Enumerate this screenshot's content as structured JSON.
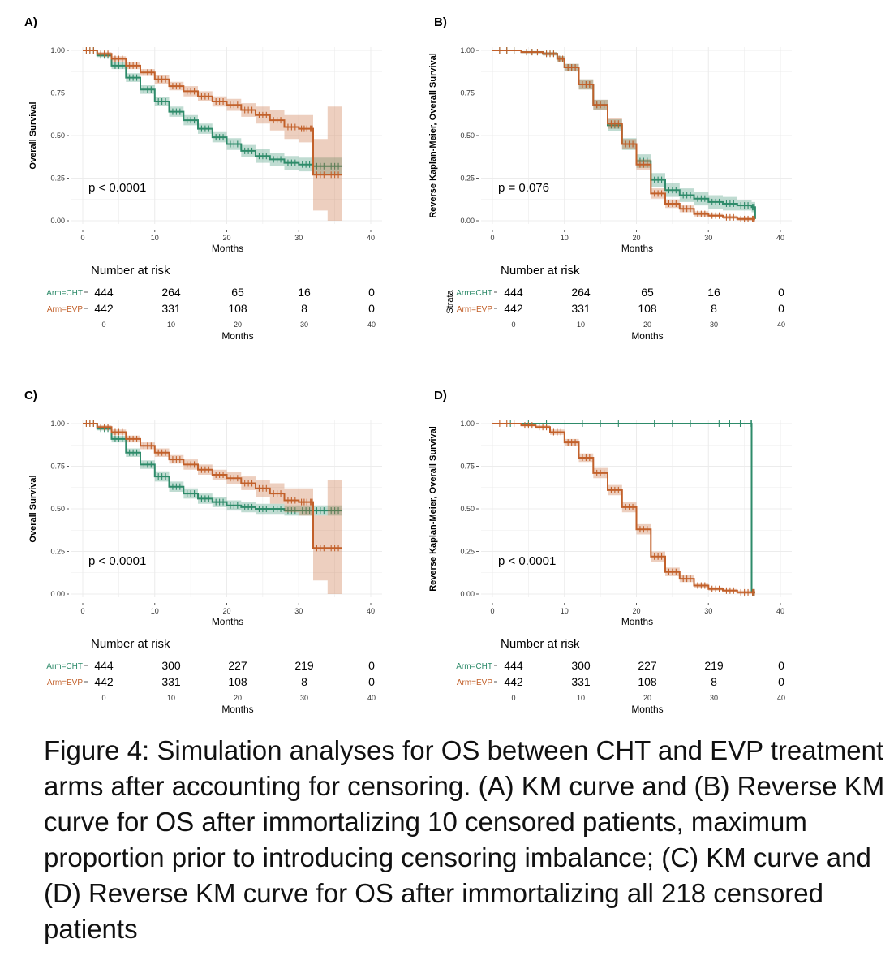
{
  "colors": {
    "cht": "#2e8b6a",
    "evp": "#c2602a",
    "grid": "#ececec"
  },
  "caption": "Figure 4: Simulation analyses for OS between CHT and EVP treatment arms after accounting for censoring. (A) KM curve and (B) Reverse KM curve for OS after immortalizing 10 censored patients, maximum proportion prior to introducing censoring imbalance; (C) KM curve and (D) Reverse KM curve for OS after immortalizing all 218 censored patients",
  "chart_data": [
    {
      "type": "line",
      "panel": "A)",
      "ylabel": "Overall Survival",
      "xlabel": "Months",
      "xlim": [
        0,
        40
      ],
      "ylim": [
        0,
        1
      ],
      "xticks": [
        "0",
        "10",
        "20",
        "30",
        "40"
      ],
      "yticks": [
        "0.00",
        "0.25",
        "0.50",
        "0.75",
        "1.00"
      ],
      "pvalue": "p < 0.0001",
      "series": [
        {
          "name": "Arm=CHT",
          "x": [
            0,
            2,
            4,
            6,
            8,
            10,
            12,
            14,
            16,
            18,
            20,
            22,
            24,
            26,
            28,
            30,
            32,
            34,
            36
          ],
          "y": [
            1.0,
            0.97,
            0.91,
            0.84,
            0.77,
            0.7,
            0.64,
            0.59,
            0.54,
            0.49,
            0.45,
            0.41,
            0.38,
            0.36,
            0.34,
            0.33,
            0.32,
            0.32,
            0.32
          ],
          "ci_half": [
            0,
            0.01,
            0.02,
            0.025,
            0.025,
            0.025,
            0.03,
            0.03,
            0.03,
            0.03,
            0.035,
            0.035,
            0.04,
            0.04,
            0.04,
            0.04,
            0.05,
            0.05,
            0.05
          ]
        },
        {
          "name": "Arm=EVP",
          "x": [
            0,
            2,
            4,
            6,
            8,
            10,
            12,
            14,
            16,
            18,
            20,
            22,
            24,
            26,
            28,
            30,
            31.5,
            32,
            34,
            36
          ],
          "y": [
            1.0,
            0.98,
            0.95,
            0.91,
            0.87,
            0.83,
            0.79,
            0.76,
            0.73,
            0.7,
            0.68,
            0.65,
            0.62,
            0.59,
            0.55,
            0.54,
            0.54,
            0.27,
            0.27,
            0.27
          ],
          "ci_half": [
            0,
            0.01,
            0.015,
            0.02,
            0.02,
            0.025,
            0.025,
            0.03,
            0.03,
            0.03,
            0.035,
            0.04,
            0.05,
            0.06,
            0.07,
            0.08,
            0.08,
            0.21,
            0.4,
            0.4
          ]
        }
      ],
      "risk_table": {
        "title": "Number at risk",
        "rows": [
          {
            "label": "Arm=CHT",
            "values": [
              "444",
              "264",
              "65",
              "16",
              "0"
            ]
          },
          {
            "label": "Arm=EVP",
            "values": [
              "442",
              "331",
              "108",
              "8",
              "0"
            ]
          }
        ],
        "xticks": [
          "0",
          "10",
          "20",
          "30",
          "40"
        ],
        "xlabel": "Months"
      }
    },
    {
      "type": "line",
      "panel": "B)",
      "ylabel": "Reverse Kaplan-Meier, Overall Survival",
      "xlabel": "Months",
      "xlim": [
        0,
        40
      ],
      "ylim": [
        0,
        1
      ],
      "xticks": [
        "0",
        "10",
        "20",
        "30",
        "40"
      ],
      "yticks": [
        "0.00",
        "0.25",
        "0.50",
        "0.75",
        "1.00"
      ],
      "pvalue": "p = 0.076",
      "series": [
        {
          "name": "Arm=CHT",
          "x": [
            0,
            4,
            7,
            9,
            10,
            12,
            14,
            16,
            18,
            20,
            22,
            24,
            26,
            28,
            30,
            32,
            34,
            36,
            36.5
          ],
          "y": [
            1.0,
            0.99,
            0.98,
            0.95,
            0.9,
            0.8,
            0.68,
            0.56,
            0.45,
            0.35,
            0.24,
            0.18,
            0.15,
            0.13,
            0.11,
            0.1,
            0.09,
            0.08,
            0.01
          ],
          "ci_half": [
            0,
            0.005,
            0.01,
            0.015,
            0.02,
            0.03,
            0.03,
            0.035,
            0.035,
            0.04,
            0.04,
            0.04,
            0.04,
            0.04,
            0.04,
            0.04,
            0.03,
            0.03,
            0.01
          ]
        },
        {
          "name": "Arm=EVP",
          "x": [
            0,
            4,
            7,
            9,
            10,
            12,
            14,
            16,
            18,
            20,
            22,
            24,
            26,
            28,
            30,
            32,
            34,
            36,
            36.5
          ],
          "y": [
            1.0,
            0.99,
            0.98,
            0.95,
            0.9,
            0.8,
            0.68,
            0.57,
            0.45,
            0.33,
            0.16,
            0.1,
            0.07,
            0.04,
            0.03,
            0.02,
            0.01,
            0.01,
            0.01
          ],
          "ci_half": [
            0,
            0.005,
            0.01,
            0.015,
            0.02,
            0.03,
            0.03,
            0.03,
            0.03,
            0.03,
            0.03,
            0.025,
            0.02,
            0.015,
            0.01,
            0.01,
            0.01,
            0.01,
            0.01
          ]
        }
      ],
      "risk_table": {
        "title": "Number at risk",
        "strata_title": "Strata",
        "rows": [
          {
            "label": "Arm=CHT",
            "values": [
              "444",
              "264",
              "65",
              "16",
              "0"
            ]
          },
          {
            "label": "Arm=EVP",
            "values": [
              "442",
              "331",
              "108",
              "8",
              "0"
            ]
          }
        ],
        "xticks": [
          "0",
          "10",
          "20",
          "30",
          "40"
        ],
        "xlabel": "Months"
      }
    },
    {
      "type": "line",
      "panel": "C)",
      "ylabel": "Overall Survival",
      "xlabel": "Months",
      "xlim": [
        0,
        40
      ],
      "ylim": [
        0,
        1
      ],
      "xticks": [
        "0",
        "10",
        "20",
        "30",
        "40"
      ],
      "yticks": [
        "0.00",
        "0.25",
        "0.50",
        "0.75",
        "1.00"
      ],
      "pvalue": "p < 0.0001",
      "series": [
        {
          "name": "Arm=CHT",
          "x": [
            0,
            2,
            4,
            6,
            8,
            10,
            12,
            14,
            16,
            18,
            20,
            22,
            24,
            26,
            28,
            30,
            32,
            34,
            36
          ],
          "y": [
            1.0,
            0.97,
            0.91,
            0.83,
            0.76,
            0.69,
            0.63,
            0.59,
            0.56,
            0.54,
            0.52,
            0.51,
            0.5,
            0.5,
            0.49,
            0.49,
            0.49,
            0.49,
            0.49
          ],
          "ci_half": [
            0,
            0.01,
            0.02,
            0.025,
            0.025,
            0.03,
            0.03,
            0.03,
            0.03,
            0.03,
            0.03,
            0.03,
            0.03,
            0.03,
            0.03,
            0.03,
            0.03,
            0.03,
            0.03
          ]
        },
        {
          "name": "Arm=EVP",
          "x": [
            0,
            2,
            4,
            6,
            8,
            10,
            12,
            14,
            16,
            18,
            20,
            22,
            24,
            26,
            28,
            30,
            31.5,
            32,
            34,
            36
          ],
          "y": [
            1.0,
            0.98,
            0.95,
            0.91,
            0.87,
            0.83,
            0.79,
            0.76,
            0.73,
            0.7,
            0.68,
            0.65,
            0.62,
            0.59,
            0.55,
            0.54,
            0.54,
            0.27,
            0.27,
            0.27
          ],
          "ci_half": [
            0,
            0.01,
            0.015,
            0.02,
            0.02,
            0.025,
            0.025,
            0.03,
            0.03,
            0.03,
            0.035,
            0.04,
            0.05,
            0.06,
            0.07,
            0.08,
            0.08,
            0.19,
            0.4,
            0.4
          ]
        }
      ],
      "risk_table": {
        "title": "Number at risk",
        "rows": [
          {
            "label": "Arm=CHT",
            "values": [
              "444",
              "300",
              "227",
              "219",
              "0"
            ]
          },
          {
            "label": "Arm=EVP",
            "values": [
              "442",
              "331",
              "108",
              "8",
              "0"
            ]
          }
        ],
        "xticks": [
          "0",
          "10",
          "20",
          "30",
          "40"
        ],
        "xlabel": "Months"
      }
    },
    {
      "type": "line",
      "panel": "D)",
      "ylabel": "Reverse Kaplan-Meier, Overall Survival",
      "xlabel": "Months",
      "xlim": [
        0,
        40
      ],
      "ylim": [
        0,
        1
      ],
      "xticks": [
        "0",
        "10",
        "20",
        "30",
        "40"
      ],
      "yticks": [
        "0.00",
        "0.25",
        "0.50",
        "0.75",
        "1.00"
      ],
      "pvalue": "p < 0.0001",
      "series": [
        {
          "name": "Arm=CHT",
          "x": [
            0,
            10,
            20,
            30,
            35.9,
            36,
            36.5
          ],
          "y": [
            1.0,
            1.0,
            1.0,
            1.0,
            1.0,
            0.01,
            0.01
          ],
          "ci_half": [
            0,
            0,
            0,
            0,
            0,
            0,
            0
          ]
        },
        {
          "name": "Arm=EVP",
          "x": [
            0,
            4,
            6,
            8,
            10,
            12,
            14,
            16,
            18,
            20,
            22,
            24,
            26,
            28,
            30,
            32,
            34,
            36,
            36.5
          ],
          "y": [
            1.0,
            0.99,
            0.98,
            0.95,
            0.89,
            0.8,
            0.71,
            0.61,
            0.51,
            0.38,
            0.22,
            0.13,
            0.09,
            0.05,
            0.03,
            0.02,
            0.01,
            0.01,
            0.01
          ],
          "ci_half": [
            0,
            0.005,
            0.01,
            0.015,
            0.02,
            0.025,
            0.03,
            0.03,
            0.03,
            0.03,
            0.03,
            0.025,
            0.02,
            0.015,
            0.01,
            0.01,
            0.01,
            0.01,
            0.01
          ]
        }
      ],
      "risk_table": {
        "title": "Number at risk",
        "rows": [
          {
            "label": "Arm=CHT",
            "values": [
              "444",
              "300",
              "227",
              "219",
              "0"
            ]
          },
          {
            "label": "Arm=EVP",
            "values": [
              "442",
              "331",
              "108",
              "8",
              "0"
            ]
          }
        ],
        "xticks": [
          "0",
          "10",
          "20",
          "30",
          "40"
        ],
        "xlabel": "Months"
      }
    }
  ]
}
